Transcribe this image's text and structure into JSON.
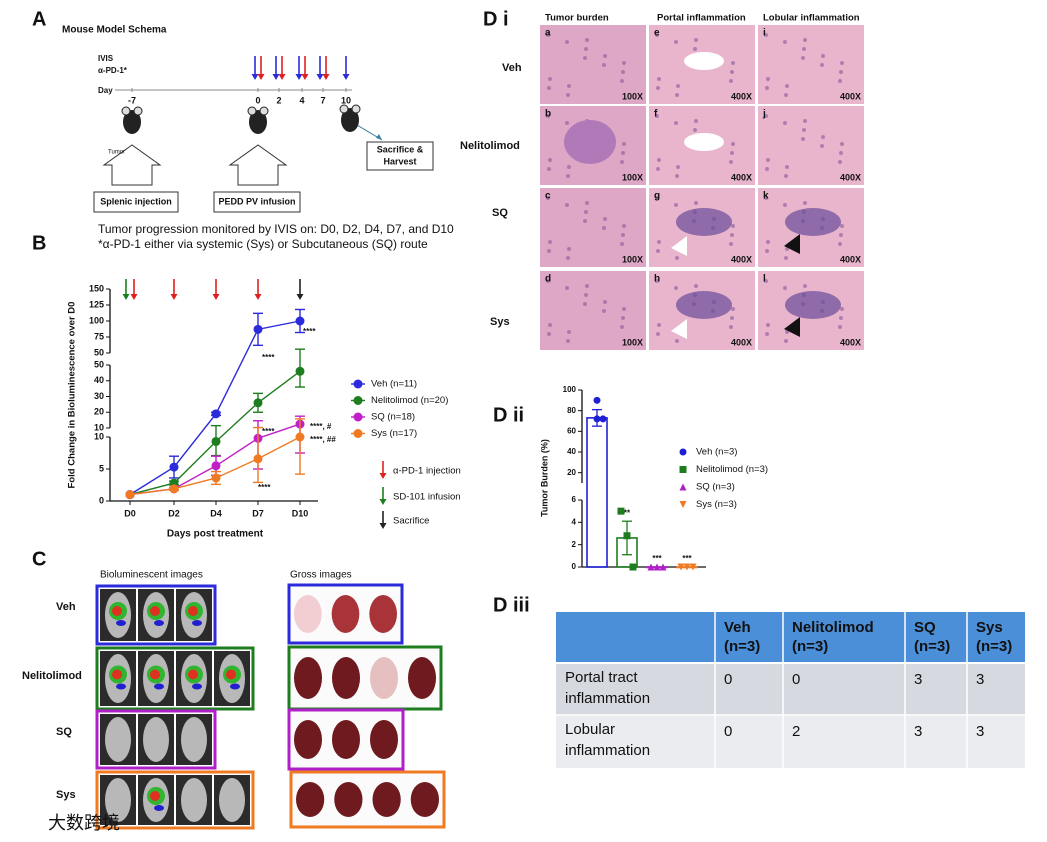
{
  "panel_a": {
    "label": "A",
    "title": "Mouse Model Schema",
    "legend": [
      "IVIS",
      "α-PD-1*"
    ],
    "day_label": "Day",
    "days": [
      "-7",
      "0",
      "2",
      "4",
      "7",
      "10"
    ],
    "tumor_label": "Tumor",
    "boxes": [
      "Splenic injection",
      "PEDD PV infusion"
    ],
    "sacrifice": [
      "Sacrifice &",
      "Harvest"
    ],
    "caption": [
      "Tumor progression monitored by IVIS on: D0, D2, D4, D7, and D10",
      "*α-PD-1 either via systemic (Sys) or Subcutaneous (SQ) route"
    ]
  },
  "chart_data": [
    {
      "type": "line",
      "label": "B",
      "y_label": "Fold Change in Bioluminescence over D0",
      "x_label": "Days post treatment",
      "categories": [
        "D0",
        "D2",
        "D4",
        "D7",
        "D10"
      ],
      "y_segments": [
        {
          "ylim": [
            0,
            10
          ],
          "yticks": [
            0,
            5,
            10
          ]
        },
        {
          "ylim": [
            10,
            50
          ],
          "yticks": [
            10,
            20,
            30,
            40,
            50
          ]
        },
        {
          "ylim": [
            50,
            150
          ],
          "yticks": [
            50,
            75,
            100,
            125,
            150
          ]
        }
      ],
      "series": [
        {
          "name": "Veh (n=11)",
          "color": "#2b2bdc",
          "values": [
            1,
            5.3,
            19,
            87,
            100
          ],
          "errors": [
            0,
            1.7,
            1,
            25,
            18
          ]
        },
        {
          "name": "Nelitolimod (n=20)",
          "color": "#1e7d1e",
          "values": [
            1,
            2.8,
            9.3,
            26,
            46
          ],
          "errors": [
            0,
            0.3,
            2.2,
            6,
            10
          ]
        },
        {
          "name": "SQ (n=18)",
          "color": "#c020c8",
          "values": [
            1,
            1.9,
            5.5,
            9.8,
            12.5
          ],
          "errors": [
            0,
            0.2,
            1.5,
            4.8,
            5
          ]
        },
        {
          "name": "Sys (n=17)",
          "color": "#f07a22",
          "values": [
            1,
            1.9,
            3.6,
            6.6,
            10
          ],
          "errors": [
            0,
            0.2,
            1,
            3.7,
            5.8
          ]
        }
      ],
      "annotations": [
        "****",
        "****",
        "****",
        "****",
        "****, #",
        "****, ##"
      ],
      "events": [
        {
          "name": "α-PD-1 injection",
          "color": "#e02020"
        },
        {
          "name": "SD-101 infusion",
          "color": "#1e7d1e"
        },
        {
          "name": "Sacrifice",
          "color": "#222222"
        }
      ]
    },
    {
      "type": "bar",
      "label": "D ii",
      "y_label": "Tumor Burden (%)",
      "categories": [
        "Veh (n=3)",
        "Nelitolimod (n=3)",
        "SQ (n=3)",
        "Sys (n=3)"
      ],
      "colors": [
        "#1f1fd6",
        "#1e7d1e",
        "#b020c8",
        "#f07a22"
      ],
      "markers": [
        "circle",
        "square",
        "triangle-up",
        "triangle-down"
      ],
      "values": [
        73,
        2.6,
        0,
        0
      ],
      "errors": [
        8,
        1.5,
        0,
        0
      ],
      "points": [
        [
          90,
          72,
          72
        ],
        [
          5,
          2.8,
          0
        ],
        [
          0,
          0,
          0
        ],
        [
          0,
          0,
          0
        ]
      ],
      "y_segments": [
        {
          "ylim": [
            0,
            6
          ],
          "yticks": [
            0,
            2,
            4,
            6
          ]
        },
        {
          "ylim": [
            10,
            100
          ],
          "yticks": [
            20,
            40,
            60,
            80,
            100
          ]
        }
      ],
      "annotations": [
        null,
        "**",
        "***",
        "***"
      ]
    }
  ],
  "panel_c": {
    "label": "C",
    "headers": [
      "Bioluminescent images",
      "Gross images"
    ],
    "rows": [
      "Veh",
      "Nelitolimod",
      "SQ",
      "Sys"
    ]
  },
  "panel_d_i": {
    "label": "D i",
    "headers": [
      "Tumor burden",
      "Portal inflammation",
      "Lobular inflammation"
    ],
    "rows": [
      "Veh",
      "Nelitolimod",
      "SQ",
      "Sys"
    ],
    "cells": [
      [
        "a",
        "e",
        "i"
      ],
      [
        "b",
        "f",
        "j"
      ],
      [
        "c",
        "g",
        "k"
      ],
      [
        "d",
        "h",
        "l"
      ]
    ],
    "magnifications": [
      "100X",
      "400X",
      "400X"
    ]
  },
  "panel_d_iii": {
    "label": "D iii",
    "header": [
      [
        "Veh",
        "(n=3)"
      ],
      [
        "Nelitolimod",
        "(n=3)"
      ],
      [
        "SQ",
        "(n=3)"
      ],
      [
        "Sys",
        "(n=3)"
      ]
    ],
    "rows": [
      {
        "label": [
          "Portal tract",
          "inflammation"
        ],
        "values": [
          0,
          0,
          3,
          3
        ]
      },
      {
        "label": [
          "Lobular",
          "inflammation"
        ],
        "values": [
          0,
          2,
          3,
          3
        ]
      }
    ]
  },
  "watermark": "大数跨境"
}
